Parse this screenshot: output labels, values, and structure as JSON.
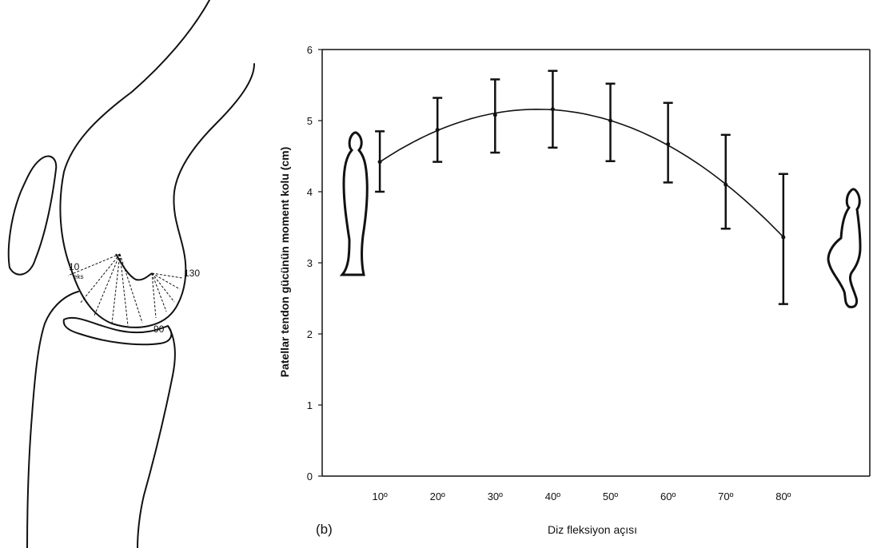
{
  "knee_diagram": {
    "label_10": "10",
    "label_eks": "eks",
    "label_130": "130",
    "label_90": "90"
  },
  "chart_data": {
    "type": "line",
    "panel_label": "(b)",
    "xlabel": "Diz fleksiyon açısı",
    "ylabel": "Patellar tendon gücünün moment kolu (cm)",
    "categories": [
      "10º",
      "20º",
      "30º",
      "40º",
      "50º",
      "60º",
      "70º",
      "80º"
    ],
    "x": [
      10,
      20,
      30,
      40,
      50,
      60,
      70,
      80
    ],
    "y_ticks": [
      "0",
      "1",
      "2",
      "3",
      "4",
      "5",
      "6"
    ],
    "ylim": [
      0,
      6
    ],
    "grid": false,
    "series": [
      {
        "values": [
          4.42,
          4.87,
          5.08,
          5.16,
          5.0,
          4.67,
          4.1,
          3.36
        ],
        "error_low": [
          4.0,
          4.42,
          4.55,
          4.62,
          4.43,
          4.13,
          3.48,
          2.42
        ],
        "error_high": [
          4.85,
          5.32,
          5.58,
          5.7,
          5.52,
          5.25,
          4.8,
          4.25
        ]
      }
    ],
    "fit_curve": "quadratic",
    "icons": [
      "standing-figure-icon",
      "squatting-figure-icon"
    ]
  }
}
